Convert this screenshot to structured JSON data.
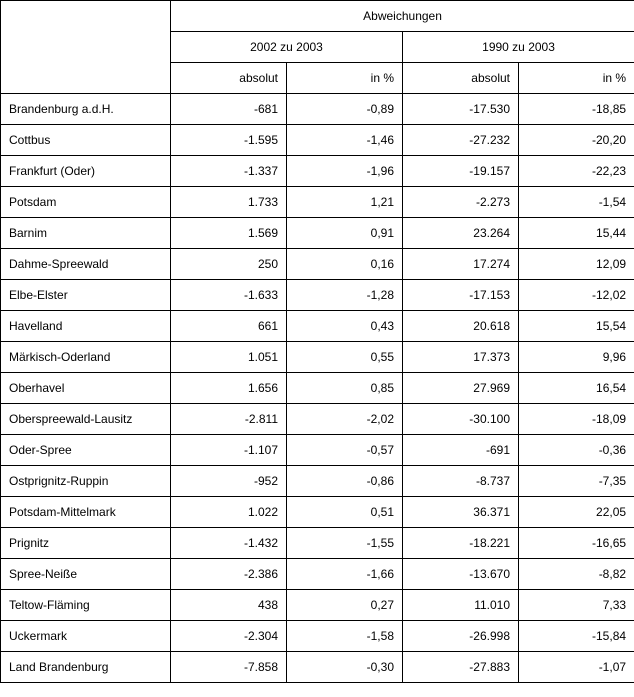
{
  "table": {
    "header": {
      "top": "Abweichungen",
      "group1": "2002 zu 2003",
      "group2": "1990 zu 2003",
      "abs": "absolut",
      "pct": "in %"
    },
    "rows": [
      {
        "label": "Brandenburg a.d.H.",
        "a1": "-681",
        "p1": "-0,89",
        "a2": "-17.530",
        "p2": "-18,85"
      },
      {
        "label": "Cottbus",
        "a1": "-1.595",
        "p1": "-1,46",
        "a2": "-27.232",
        "p2": "-20,20"
      },
      {
        "label": "Frankfurt (Oder)",
        "a1": "-1.337",
        "p1": "-1,96",
        "a2": "-19.157",
        "p2": "-22,23"
      },
      {
        "label": "Potsdam",
        "a1": "1.733",
        "p1": "1,21",
        "a2": "-2.273",
        "p2": "-1,54"
      },
      {
        "label": "Barnim",
        "a1": "1.569",
        "p1": "0,91",
        "a2": "23.264",
        "p2": "15,44"
      },
      {
        "label": "Dahme-Spreewald",
        "a1": "250",
        "p1": "0,16",
        "a2": "17.274",
        "p2": "12,09"
      },
      {
        "label": "Elbe-Elster",
        "a1": "-1.633",
        "p1": "-1,28",
        "a2": "-17.153",
        "p2": "-12,02"
      },
      {
        "label": "Havelland",
        "a1": "661",
        "p1": "0,43",
        "a2": "20.618",
        "p2": "15,54"
      },
      {
        "label": "Märkisch-Oderland",
        "a1": "1.051",
        "p1": "0,55",
        "a2": "17.373",
        "p2": "9,96"
      },
      {
        "label": "Oberhavel",
        "a1": "1.656",
        "p1": "0,85",
        "a2": "27.969",
        "p2": "16,54"
      },
      {
        "label": "Oberspreewald-Lausitz",
        "a1": "-2.811",
        "p1": "-2,02",
        "a2": "-30.100",
        "p2": "-18,09"
      },
      {
        "label": "Oder-Spree",
        "a1": "-1.107",
        "p1": "-0,57",
        "a2": "-691",
        "p2": "-0,36"
      },
      {
        "label": "Ostprignitz-Ruppin",
        "a1": "-952",
        "p1": "-0,86",
        "a2": "-8.737",
        "p2": "-7,35"
      },
      {
        "label": "Potsdam-Mittelmark",
        "a1": "1.022",
        "p1": "0,51",
        "a2": "36.371",
        "p2": "22,05"
      },
      {
        "label": "Prignitz",
        "a1": "-1.432",
        "p1": "-1,55",
        "a2": "-18.221",
        "p2": "-16,65"
      },
      {
        "label": "Spree-Neiße",
        "a1": "-2.386",
        "p1": "-1,66",
        "a2": "-13.670",
        "p2": "-8,82"
      },
      {
        "label": "Teltow-Fläming",
        "a1": "438",
        "p1": "0,27",
        "a2": "11.010",
        "p2": "7,33"
      },
      {
        "label": "Uckermark",
        "a1": "-2.304",
        "p1": "-1,58",
        "a2": "-26.998",
        "p2": "-15,84"
      },
      {
        "label": "Land Brandenburg",
        "a1": "-7.858",
        "p1": "-0,30",
        "a2": "-27.883",
        "p2": "-1,07"
      }
    ]
  }
}
